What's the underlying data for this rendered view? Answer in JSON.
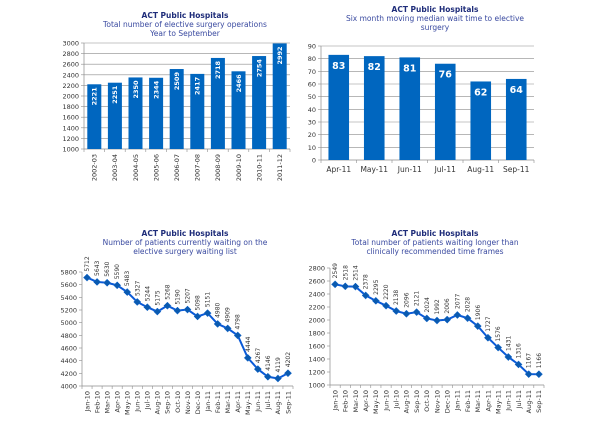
{
  "chart_data": [
    {
      "id": "elective-operations",
      "type": "bar",
      "title": "ACT Public Hospitals",
      "subtitle": [
        "Total number of elective surgery operations",
        "Year to September"
      ],
      "categories": [
        "2002-03",
        "2003-04",
        "2004-05",
        "2005-06",
        "2006-07",
        "2007-08",
        "2008-09",
        "2009-10",
        "2010-11",
        "2011-12"
      ],
      "values": [
        2221,
        2251,
        2350,
        2344,
        2509,
        2417,
        2718,
        2466,
        2754,
        2992
      ],
      "ylim": [
        1000,
        3000
      ],
      "yticks": [
        1000,
        1200,
        1400,
        1600,
        1800,
        2000,
        2200,
        2400,
        2600,
        2800,
        3000
      ],
      "xlabel": "",
      "ylabel": "",
      "grid": true,
      "data_labels": "inside-rotated",
      "color": "#0066bf"
    },
    {
      "id": "median-wait",
      "type": "bar",
      "title": "ACT Public Hospitals",
      "subtitle": [
        "Six month moving median wait time to elective",
        "surgery"
      ],
      "categories": [
        "Apr-11",
        "May-11",
        "Jun-11",
        "Jul-11",
        "Aug-11",
        "Sep-11"
      ],
      "values": [
        83,
        82,
        81,
        76,
        62,
        64
      ],
      "ylim": [
        0,
        90
      ],
      "yticks": [
        0,
        10,
        20,
        30,
        40,
        50,
        60,
        70,
        80,
        90
      ],
      "xlabel": "",
      "ylabel": "",
      "grid": true,
      "data_labels": "inside-top",
      "color": "#0066bf"
    },
    {
      "id": "patients-waiting",
      "type": "line",
      "title": "ACT Public Hospitals",
      "subtitle": [
        "Number of patients currently waiting on the",
        "elective surgery waiting list"
      ],
      "categories": [
        "Jan-10",
        "Feb-10",
        "Mar-10",
        "Apr-10",
        "May-10",
        "Jun-10",
        "Jul-10",
        "Aug-10",
        "Sep-10",
        "Oct-10",
        "Nov-10",
        "Dec-10",
        "Jan-11",
        "Feb-11",
        "Mar-11",
        "Apr-11",
        "May-11",
        "Jun-11",
        "Jul-11",
        "Aug-11",
        "Sep-11"
      ],
      "values": [
        5712,
        5643,
        5630,
        5590,
        5483,
        5327,
        5244,
        5175,
        5268,
        5190,
        5207,
        5098,
        5151,
        4980,
        4909,
        4798,
        4444,
        4267,
        4146,
        4119,
        4202
      ],
      "ylim": [
        4000,
        5800
      ],
      "yticks": [
        4000,
        4200,
        4400,
        4600,
        4800,
        5000,
        5200,
        5400,
        5600,
        5800
      ],
      "xlabel": "",
      "ylabel": "",
      "grid": false,
      "marker": "diamond",
      "color": "#0a5ad8"
    },
    {
      "id": "patients-overdue",
      "type": "line",
      "title": "ACT Public Hospitals",
      "subtitle": [
        "Total number of patients waiting longer than",
        "clinically recommended time frames"
      ],
      "categories": [
        "Jan-10",
        "Feb-10",
        "Mar-10",
        "Apr-10",
        "May-10",
        "Jun-10",
        "Jul-10",
        "Aug-10",
        "Sep-10",
        "Oct-10",
        "Nov-10",
        "Dec-10",
        "Jan-11",
        "Feb-11",
        "Mar-11",
        "Apr-11",
        "May-11",
        "Jun-11",
        "Jul-11",
        "Aug-11",
        "Sep-11"
      ],
      "values": [
        2549,
        2518,
        2514,
        2378,
        2295,
        2220,
        2138,
        2096,
        2121,
        2024,
        1992,
        2006,
        2077,
        2028,
        1906,
        1727,
        1576,
        1431,
        1316,
        1167,
        1166
      ],
      "ylim": [
        1000,
        2800
      ],
      "yticks": [
        1000,
        1200,
        1400,
        1600,
        1800,
        2000,
        2200,
        2400,
        2600,
        2800
      ],
      "xlabel": "",
      "ylabel": "",
      "grid": false,
      "marker": "diamond",
      "color": "#0a5ad8"
    }
  ]
}
